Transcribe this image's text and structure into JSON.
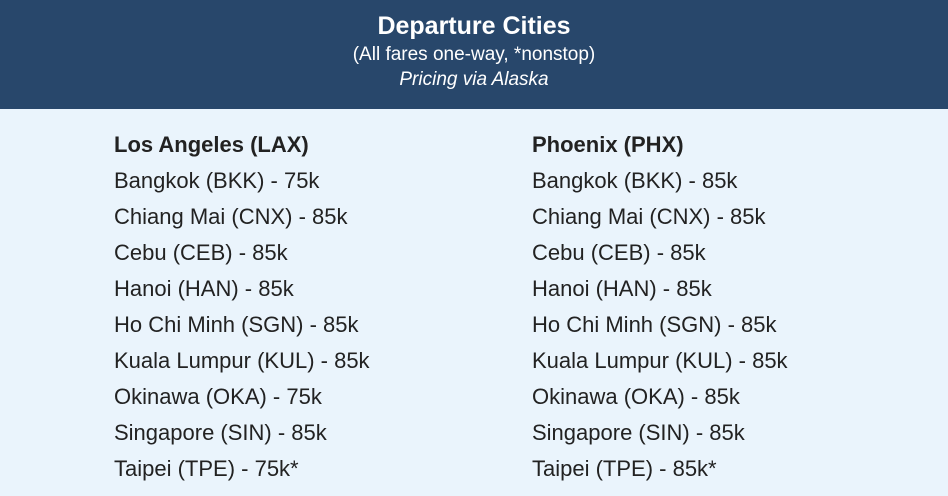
{
  "header": {
    "title": "Departure Cities",
    "subtitle": "(All fares one-way, *nonstop)",
    "note": "Pricing via Alaska",
    "background_color": "#28476b"
  },
  "content": {
    "background_color": "#eaf4fc"
  },
  "columns": [
    {
      "title": "Los Angeles (LAX)",
      "routes": [
        "Bangkok (BKK) - 75k",
        "Chiang Mai (CNX) - 85k",
        "Cebu (CEB) - 85k",
        "Hanoi (HAN) - 85k",
        "Ho Chi Minh (SGN) - 85k",
        "Kuala Lumpur (KUL) - 85k",
        "Okinawa (OKA) - 75k",
        "Singapore (SIN) - 85k",
        "Taipei (TPE) - 75k*"
      ]
    },
    {
      "title": "Phoenix (PHX)",
      "routes": [
        "Bangkok (BKK) - 85k",
        "Chiang Mai (CNX) - 85k",
        "Cebu (CEB) - 85k",
        "Hanoi (HAN) - 85k",
        "Ho Chi Minh (SGN) - 85k",
        "Kuala Lumpur (KUL) - 85k",
        "Okinawa (OKA) - 85k",
        "Singapore (SIN) - 85k",
        "Taipei (TPE) - 85k*"
      ]
    }
  ]
}
